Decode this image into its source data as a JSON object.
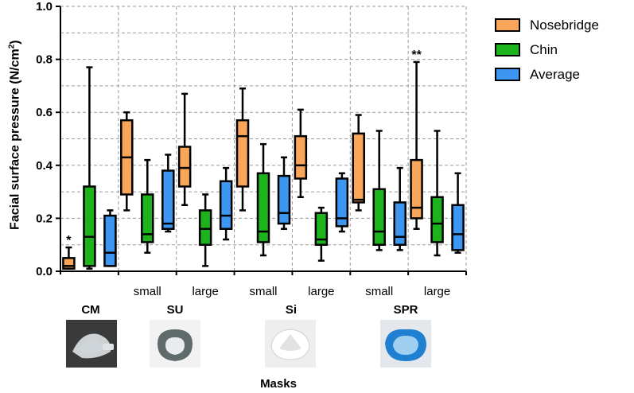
{
  "chart_data": {
    "type": "box",
    "ylabel": "Facial surface pressure (N/cm",
    "ylabel_sup": "2",
    "ylabel_end": ")",
    "xlabel": "Masks",
    "ylim": [
      0,
      1.0
    ],
    "yticks": [
      "0.0",
      "0.2",
      "0.4",
      "0.6",
      "0.8",
      "1.0"
    ],
    "grid": true,
    "legend_position": "top-right",
    "series": [
      {
        "name": "Nosebridge",
        "color": "#F9A65A"
      },
      {
        "name": "Chin",
        "color": "#1DB31D"
      },
      {
        "name": "Average",
        "color": "#3D96F0"
      }
    ],
    "groups": [
      {
        "label": "",
        "boxes": [
          {
            "min": 0.01,
            "q1": 0.01,
            "median": 0.02,
            "q3": 0.05,
            "max": 0.09,
            "mark": "*"
          },
          {
            "min": 0.01,
            "q1": 0.02,
            "median": 0.13,
            "q3": 0.32,
            "max": 0.77,
            "mark": ""
          },
          {
            "min": 0.02,
            "q1": 0.02,
            "median": 0.07,
            "q3": 0.21,
            "max": 0.23,
            "mark": ""
          }
        ]
      },
      {
        "label": "small",
        "boxes": [
          {
            "min": 0.23,
            "q1": 0.29,
            "median": 0.43,
            "q3": 0.57,
            "max": 0.6,
            "mark": ""
          },
          {
            "min": 0.07,
            "q1": 0.11,
            "median": 0.14,
            "q3": 0.29,
            "max": 0.42,
            "mark": ""
          },
          {
            "min": 0.15,
            "q1": 0.16,
            "median": 0.18,
            "q3": 0.38,
            "max": 0.44,
            "mark": ""
          }
        ]
      },
      {
        "label": "large",
        "boxes": [
          {
            "min": 0.25,
            "q1": 0.32,
            "median": 0.39,
            "q3": 0.47,
            "max": 0.67,
            "mark": ""
          },
          {
            "min": 0.02,
            "q1": 0.1,
            "median": 0.16,
            "q3": 0.23,
            "max": 0.29,
            "mark": ""
          },
          {
            "min": 0.12,
            "q1": 0.16,
            "median": 0.21,
            "q3": 0.34,
            "max": 0.39,
            "mark": ""
          }
        ]
      },
      {
        "label": "small",
        "boxes": [
          {
            "min": 0.23,
            "q1": 0.32,
            "median": 0.51,
            "q3": 0.57,
            "max": 0.69,
            "mark": ""
          },
          {
            "min": 0.06,
            "q1": 0.11,
            "median": 0.15,
            "q3": 0.37,
            "max": 0.48,
            "mark": ""
          },
          {
            "min": 0.16,
            "q1": 0.18,
            "median": 0.22,
            "q3": 0.36,
            "max": 0.43,
            "mark": ""
          }
        ]
      },
      {
        "label": "large",
        "boxes": [
          {
            "min": 0.28,
            "q1": 0.35,
            "median": 0.4,
            "q3": 0.51,
            "max": 0.61,
            "mark": ""
          },
          {
            "min": 0.04,
            "q1": 0.1,
            "median": 0.12,
            "q3": 0.22,
            "max": 0.24,
            "mark": ""
          },
          {
            "min": 0.15,
            "q1": 0.17,
            "median": 0.2,
            "q3": 0.35,
            "max": 0.37,
            "mark": ""
          }
        ]
      },
      {
        "label": "small",
        "boxes": [
          {
            "min": 0.23,
            "q1": 0.26,
            "median": 0.27,
            "q3": 0.52,
            "max": 0.59,
            "mark": ""
          },
          {
            "min": 0.08,
            "q1": 0.1,
            "median": 0.15,
            "q3": 0.31,
            "max": 0.53,
            "mark": ""
          },
          {
            "min": 0.08,
            "q1": 0.1,
            "median": 0.13,
            "q3": 0.26,
            "max": 0.39,
            "mark": ""
          }
        ]
      },
      {
        "label": "large",
        "boxes": [
          {
            "min": 0.16,
            "q1": 0.2,
            "median": 0.24,
            "q3": 0.42,
            "max": 0.79,
            "mark": "**"
          },
          {
            "min": 0.06,
            "q1": 0.11,
            "median": 0.18,
            "q3": 0.28,
            "max": 0.53,
            "mark": ""
          },
          {
            "min": 0.07,
            "q1": 0.08,
            "median": 0.14,
            "q3": 0.25,
            "max": 0.37,
            "mark": ""
          }
        ]
      }
    ]
  },
  "masks": [
    {
      "name": "CM",
      "photo": "cm-mask-photo"
    },
    {
      "name": "SU",
      "photo": "su-mask-photo"
    },
    {
      "name": "Si",
      "photo": "si-mask-photo"
    },
    {
      "name": "SPR",
      "photo": "spr-mask-photo"
    }
  ]
}
